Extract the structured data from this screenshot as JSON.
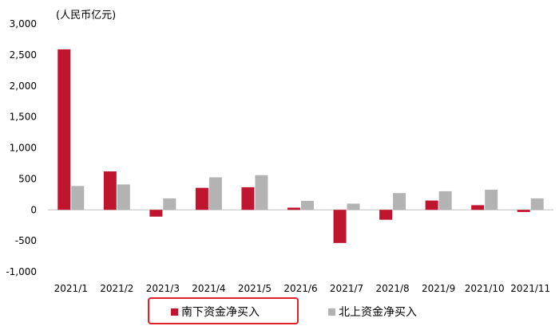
{
  "chart_data": {
    "type": "bar",
    "unit_label": "(人民币亿元)",
    "categories": [
      "2021/1",
      "2021/2",
      "2021/3",
      "2021/4",
      "2021/5",
      "2021/6",
      "2021/7",
      "2021/8",
      "2021/9",
      "2021/10",
      "2021/11"
    ],
    "series": [
      {
        "name": "南下资金净买入",
        "color": "#C0152F",
        "values": [
          2590,
          620,
          -110,
          355,
          365,
          35,
          -535,
          -160,
          150,
          75,
          -35
        ]
      },
      {
        "name": "北上资金净买入",
        "color": "#B3B3B3",
        "values": [
          385,
          410,
          185,
          525,
          560,
          145,
          100,
          270,
          300,
          325,
          185
        ]
      }
    ],
    "ylim": [
      -1000,
      3000
    ],
    "yticks": [
      -1000,
      -500,
      0,
      500,
      1000,
      1500,
      2000,
      2500,
      3000
    ],
    "ytick_labels": [
      "-1,000",
      "-500",
      "0",
      "500",
      "1,000",
      "1,500",
      "2,000",
      "2,500",
      "3,000"
    ],
    "legend_position": "bottom",
    "legend_highlight_color": "#E1212A",
    "grid": false
  }
}
